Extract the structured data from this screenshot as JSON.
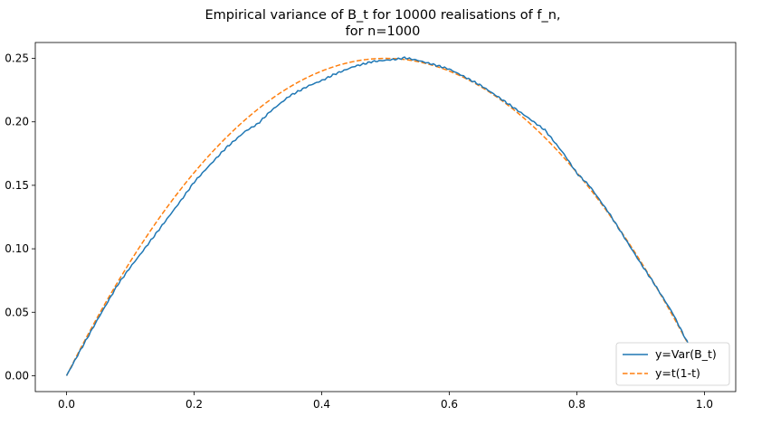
{
  "chart_data": {
    "type": "line",
    "title_lines": [
      "Empirical variance of B_t for 10000 realisations of f_n,",
      "for n=1000"
    ],
    "xlabel": "",
    "ylabel": "",
    "xlim": [
      -0.049,
      1.049
    ],
    "ylim": [
      -0.0125,
      0.2625
    ],
    "x_ticks": [
      0.0,
      0.2,
      0.4,
      0.6,
      0.8,
      1.0
    ],
    "x_tick_labels": [
      "0.0",
      "0.2",
      "0.4",
      "0.6",
      "0.8",
      "1.0"
    ],
    "y_ticks": [
      0.0,
      0.05,
      0.1,
      0.15,
      0.2,
      0.25
    ],
    "y_tick_labels": [
      "0.00",
      "0.05",
      "0.10",
      "0.15",
      "0.20",
      "0.25"
    ],
    "grid": false,
    "legend_position": "lower-right",
    "x": [
      0.0,
      0.02,
      0.05,
      0.08,
      0.1,
      0.12,
      0.15,
      0.18,
      0.2,
      0.22,
      0.25,
      0.28,
      0.3,
      0.32,
      0.35,
      0.38,
      0.4,
      0.42,
      0.45,
      0.48,
      0.5,
      0.52,
      0.53,
      0.55,
      0.58,
      0.6,
      0.62,
      0.65,
      0.68,
      0.7,
      0.72,
      0.75,
      0.78,
      0.8,
      0.82,
      0.85,
      0.88,
      0.9,
      0.92,
      0.95,
      0.98,
      1.0
    ],
    "series": [
      {
        "name": "y=Var(B_t)",
        "color": "#1f77b4",
        "style": "solid",
        "values": [
          0.0,
          0.0185,
          0.0455,
          0.0715,
          0.0855,
          0.0985,
          0.1185,
          0.1385,
          0.1525,
          0.1635,
          0.1795,
          0.1925,
          0.1985,
          0.2085,
          0.2205,
          0.2285,
          0.2325,
          0.2375,
          0.2435,
          0.2475,
          0.2485,
          0.2495,
          0.2505,
          0.2485,
          0.2445,
          0.2415,
          0.2365,
          0.2285,
          0.2185,
          0.2115,
          0.2045,
          0.1935,
          0.1745,
          0.1595,
          0.1495,
          0.1285,
          0.1045,
          0.0885,
          0.0735,
          0.0495,
          0.0195,
          0.0
        ]
      },
      {
        "name": "y=t(1-t)",
        "color": "#ff7f0e",
        "style": "dashed",
        "formula": "t(1-t)"
      }
    ]
  }
}
